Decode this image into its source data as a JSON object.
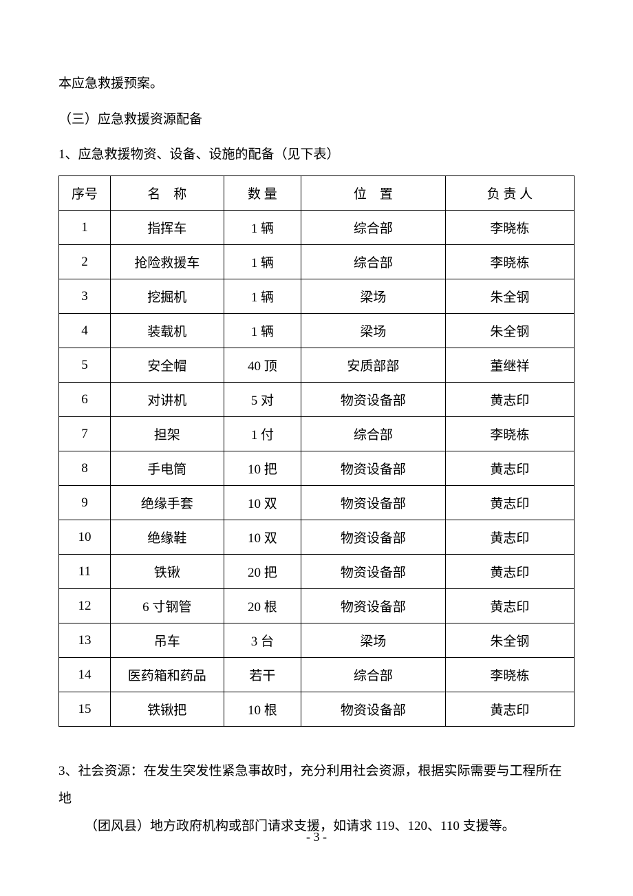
{
  "paragraphs": {
    "p1": "本应急救援预案。",
    "p2": "（三）应急救援资源配备",
    "p3": "1、应急救援物资、设备、设施的配备（见下表）"
  },
  "table": {
    "headers": {
      "idx": "序号",
      "name": "名　称",
      "qty": "数 量",
      "loc": "位　置",
      "person": "负 责 人"
    },
    "rows": [
      {
        "idx": "1",
        "name": "指挥车",
        "qty": "1 辆",
        "loc": "综合部",
        "person": "李晓栋"
      },
      {
        "idx": "2",
        "name": "抢险救援车",
        "qty": "1 辆",
        "loc": "综合部",
        "person": "李晓栋"
      },
      {
        "idx": "3",
        "name": "挖掘机",
        "qty": "1 辆",
        "loc": "梁场",
        "person": "朱全钢"
      },
      {
        "idx": "4",
        "name": "装载机",
        "qty": "1 辆",
        "loc": "梁场",
        "person": "朱全钢"
      },
      {
        "idx": "5",
        "name": "安全帽",
        "qty": "40 顶",
        "loc": "安质部部",
        "person": "董继祥"
      },
      {
        "idx": "6",
        "name": "对讲机",
        "qty": "5 对",
        "loc": "物资设备部",
        "person": "黄志印"
      },
      {
        "idx": "7",
        "name": "担架",
        "qty": "1 付",
        "loc": "综合部",
        "person": "李晓栋"
      },
      {
        "idx": "8",
        "name": "手电筒",
        "qty": "10 把",
        "loc": "物资设备部",
        "person": "黄志印"
      },
      {
        "idx": "9",
        "name": "绝缘手套",
        "qty": "10 双",
        "loc": "物资设备部",
        "person": "黄志印"
      },
      {
        "idx": "10",
        "name": "绝缘鞋",
        "qty": "10 双",
        "loc": "物资设备部",
        "person": "黄志印"
      },
      {
        "idx": "11",
        "name": "铁锹",
        "qty": "20 把",
        "loc": "物资设备部",
        "person": "黄志印"
      },
      {
        "idx": "12",
        "name": "6 寸钢管",
        "qty": "20 根",
        "loc": "物资设备部",
        "person": "黄志印"
      },
      {
        "idx": "13",
        "name": "吊车",
        "qty": "3 台",
        "loc": "梁场",
        "person": "朱全钢"
      },
      {
        "idx": "14",
        "name": "医药箱和药品",
        "qty": "若干",
        "loc": "综合部",
        "person": "李晓栋"
      },
      {
        "idx": "15",
        "name": "铁锹把",
        "qty": "10 根",
        "loc": "物资设备部",
        "person": "黄志印"
      }
    ]
  },
  "bottom": {
    "line1": "3、社会资源：在发生突发性紧急事故时，充分利用社会资源，根据实际需要与工程所在地",
    "line2": "（团风县）地方政府机构或部门请求支援，如请求 119、120、110 支援等。"
  },
  "page_number": "- 3 -"
}
